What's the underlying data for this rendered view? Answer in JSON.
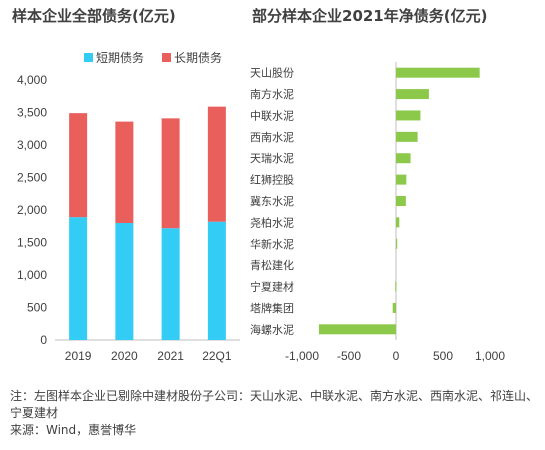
{
  "left_chart": {
    "title": "样本企业全部债务(亿元)"
  },
  "right_chart": {
    "title": "部分样本企业2021年净债务(亿元)"
  },
  "footnote": {
    "note": "注：左图样本企业已剔除中建材股份子公司：天山水泥、中联水泥、南方水泥、西南水泥、祁连山、宁夏建材",
    "source": "来源：Wind，惠誉博华"
  },
  "colors": {
    "short_term": "#33CCF5",
    "long_term": "#E85F5C",
    "net_debt": "#8CC94A"
  },
  "chart_data": [
    {
      "type": "bar",
      "stacked": true,
      "categories": [
        "2019",
        "2020",
        "2021",
        "22Q1"
      ],
      "series": [
        {
          "name": "短期债务",
          "values": [
            1890,
            1800,
            1720,
            1820
          ]
        },
        {
          "name": "长期债务",
          "values": [
            1600,
            1560,
            1690,
            1770
          ]
        }
      ],
      "ylim": [
        0,
        4000
      ],
      "yticks": [
        "0",
        "500",
        "1,000",
        "1,500",
        "2,000",
        "2,500",
        "3,000",
        "3,500",
        "4,000"
      ],
      "legend": "top",
      "grid": false
    },
    {
      "type": "bar",
      "orientation": "horizontal",
      "categories": [
        "天山股份",
        "南方水泥",
        "中联水泥",
        "西南水泥",
        "天瑞水泥",
        "红狮控股",
        "冀东水泥",
        "尧柏水泥",
        "华新水泥",
        "青松建化",
        "宁夏建材",
        "塔牌集团",
        "海螺水泥"
      ],
      "values": [
        890,
        350,
        260,
        230,
        155,
        110,
        105,
        35,
        12,
        0,
        -8,
        -35,
        -820
      ],
      "xlim": [
        -1000,
        1000
      ],
      "xticks": [
        "-1,000",
        "-500",
        "0",
        "500",
        "1,000"
      ],
      "grid": false
    }
  ]
}
